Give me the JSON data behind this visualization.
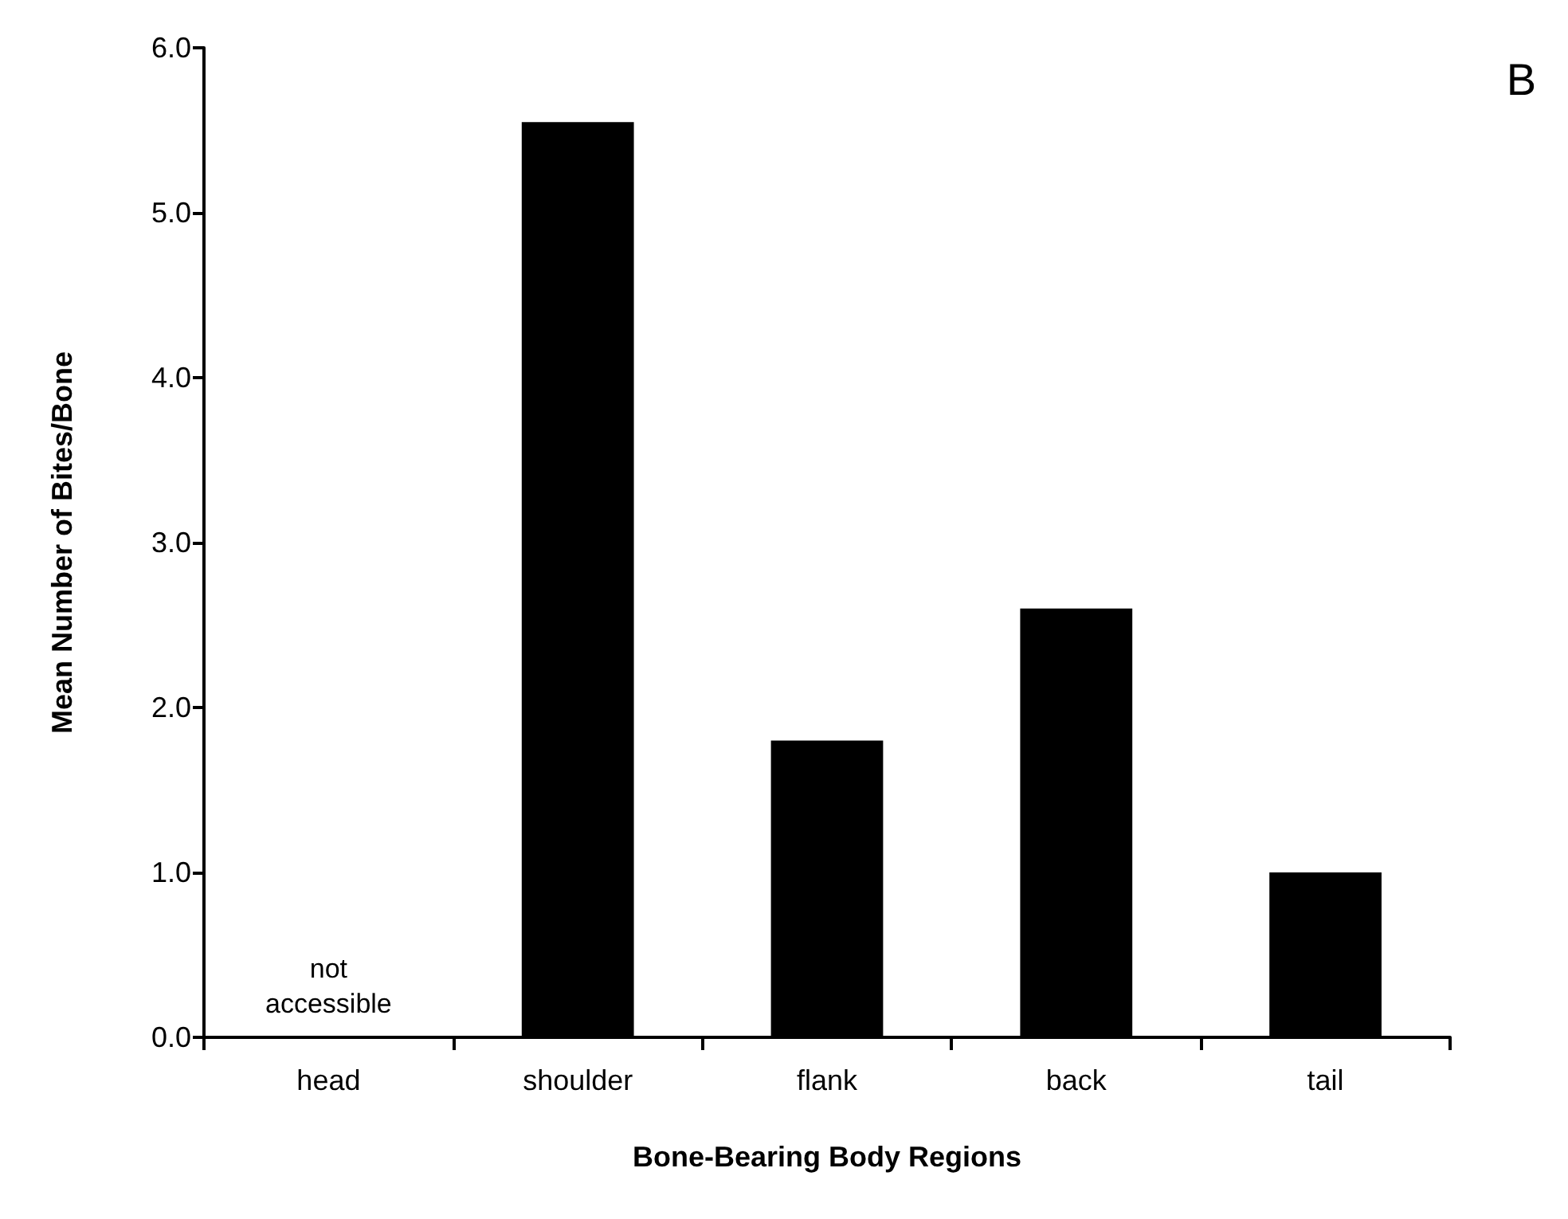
{
  "chart_data": {
    "type": "bar",
    "xlabel": "Bone-Bearing Body Regions",
    "ylabel": "Mean Number of Bites/Bone",
    "categories": [
      "head",
      "shoulder",
      "flank",
      "back",
      "tail"
    ],
    "values": [
      null,
      5.55,
      1.8,
      2.6,
      1.0
    ],
    "color": "#000000",
    "ylim": [
      0,
      6
    ],
    "yticks": [
      {
        "value": 0,
        "label": "0.0"
      },
      {
        "value": 1,
        "label": "1.0"
      },
      {
        "value": 2,
        "label": "2.0"
      },
      {
        "value": 3,
        "label": "3.0"
      },
      {
        "value": 4,
        "label": "4.0"
      },
      {
        "value": 5,
        "label": "5.0"
      },
      {
        "value": 6,
        "label": "6.0"
      }
    ],
    "grid": false,
    "annotations": [
      "B",
      "not accessible"
    ]
  }
}
